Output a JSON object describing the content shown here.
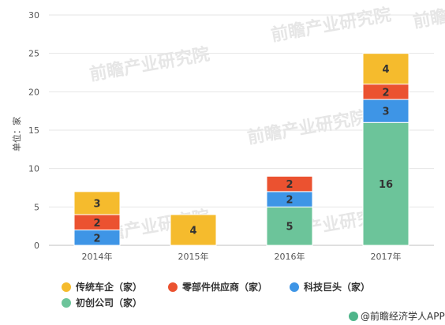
{
  "chart_data": {
    "type": "bar",
    "stacked": true,
    "categories": [
      "2014年",
      "2015年",
      "2016年",
      "2017年"
    ],
    "series": [
      {
        "name": "初创公司（家）",
        "color": "#6cc49a",
        "values": [
          0,
          0,
          5,
          16
        ]
      },
      {
        "name": "科技巨头（家）",
        "color": "#3e95e6",
        "values": [
          2,
          0,
          2,
          3
        ]
      },
      {
        "name": "零部件供应商（家）",
        "color": "#eb5230",
        "values": [
          2,
          0,
          2,
          2
        ]
      },
      {
        "name": "传统车企（家）",
        "color": "#f5bb2d",
        "values": [
          3,
          4,
          0,
          4
        ]
      }
    ],
    "legend_order": [
      3,
      2,
      1,
      0
    ],
    "ylabel": "单位：家",
    "ylim": [
      0,
      30
    ],
    "yticks": [
      0,
      5,
      10,
      15,
      20,
      25,
      30
    ],
    "grid": true,
    "legend_placement": "bottom"
  },
  "watermark": "前瞻产业研究院",
  "source": "@前瞻经济学人APP"
}
